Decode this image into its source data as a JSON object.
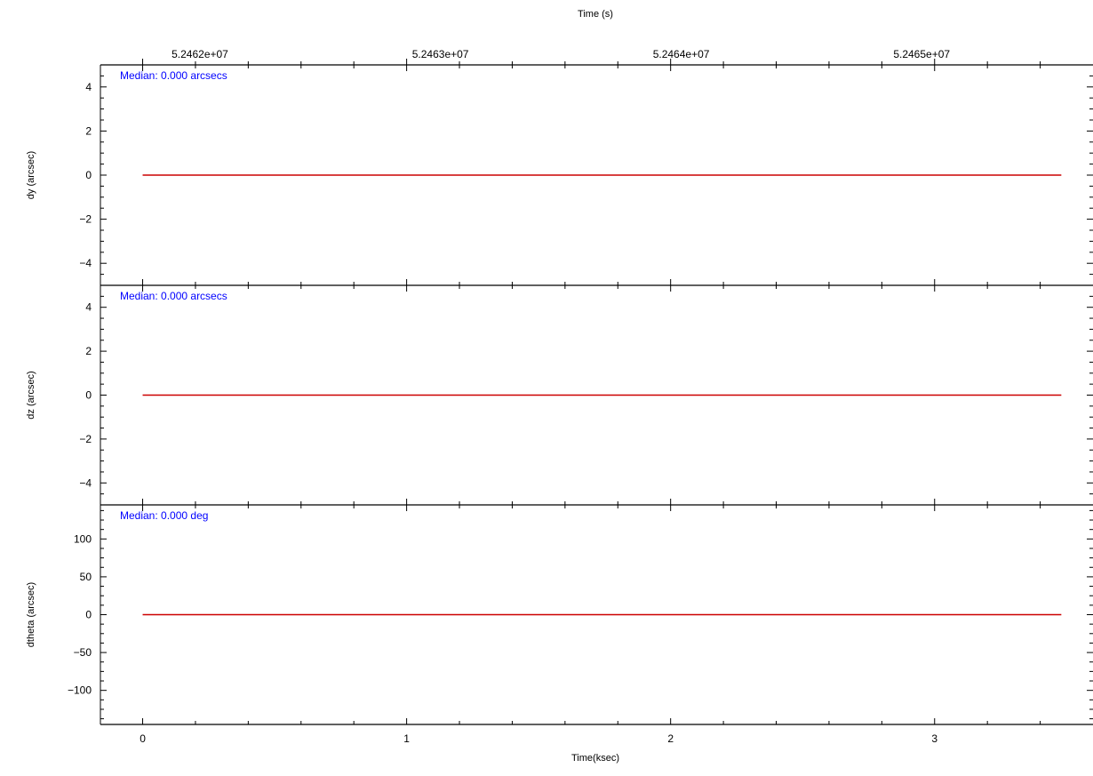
{
  "chart_data": {
    "type": "line",
    "top_axis": {
      "label": "Time (s)",
      "tick_labels": [
        "5.2462e+07",
        "5.2463e+07",
        "5.2464e+07",
        "5.2465e+07"
      ],
      "tick_values_ksec": [
        0.217,
        1.128,
        2.04,
        2.951
      ]
    },
    "bottom_axis": {
      "label": "Time(ksec)",
      "tick_labels": [
        "0",
        "1",
        "2",
        "3"
      ],
      "tick_values": [
        0,
        1,
        2,
        3
      ],
      "range": [
        -0.16,
        3.6
      ]
    },
    "line_color": "#cc0000",
    "median_color": "#0000ff",
    "panels": [
      {
        "ylabel": "dy (arcsec)",
        "ylim": [
          -5,
          5
        ],
        "y_ticks": [
          -4,
          -2,
          0,
          2,
          4
        ],
        "y_tick_labels": [
          "−4",
          "−2",
          "0",
          "2",
          "4"
        ],
        "median_text": "Median: 0.000 arcsecs",
        "series": {
          "x": [
            0,
            3.48
          ],
          "y": [
            0,
            0
          ]
        }
      },
      {
        "ylabel": "dz (arcsec)",
        "ylim": [
          -5,
          5
        ],
        "y_ticks": [
          -4,
          -2,
          0,
          2,
          4
        ],
        "y_tick_labels": [
          "−4",
          "−2",
          "0",
          "2",
          "4"
        ],
        "median_text": "Median: 0.000 arcsecs",
        "series": {
          "x": [
            0,
            3.48
          ],
          "y": [
            0,
            0
          ]
        }
      },
      {
        "ylabel": "dtheta (arcsec)",
        "ylim": [
          -145,
          145
        ],
        "y_ticks": [
          -100,
          -50,
          0,
          50,
          100
        ],
        "y_tick_labels": [
          "−100",
          "−50",
          "0",
          "50",
          "100"
        ],
        "median_text": "Median: 0.000 deg",
        "series": {
          "x": [
            0,
            3.48
          ],
          "y": [
            0,
            0
          ]
        }
      }
    ]
  }
}
